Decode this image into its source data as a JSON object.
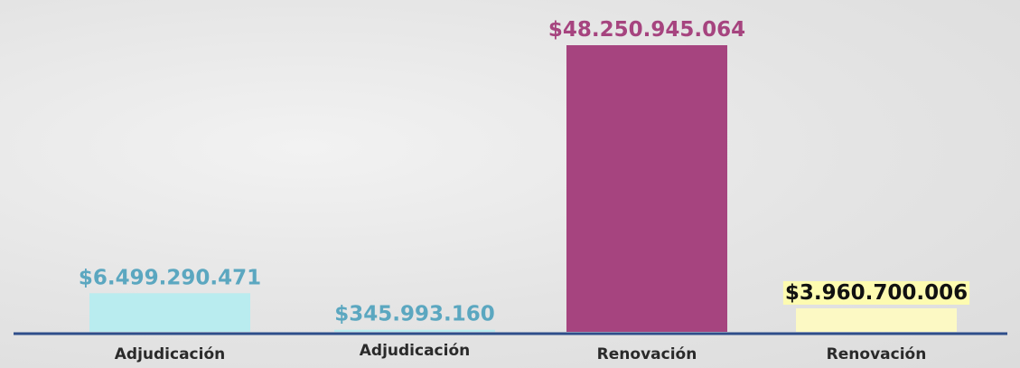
{
  "chart_data": {
    "type": "bar",
    "categories": [
      "Adjudicación",
      "Adjudicación",
      "Renovación",
      "Renovación"
    ],
    "values": [
      6499290471,
      345993160,
      48250945064,
      3960700006
    ],
    "value_labels": [
      "$6.499.290.471",
      "$345.993.160",
      "$48.250.945.064",
      "$3.960.700.006"
    ],
    "colors": [
      "#b9ecef",
      "#b9ecef",
      "#a6447f",
      "#fcf9c4"
    ]
  }
}
